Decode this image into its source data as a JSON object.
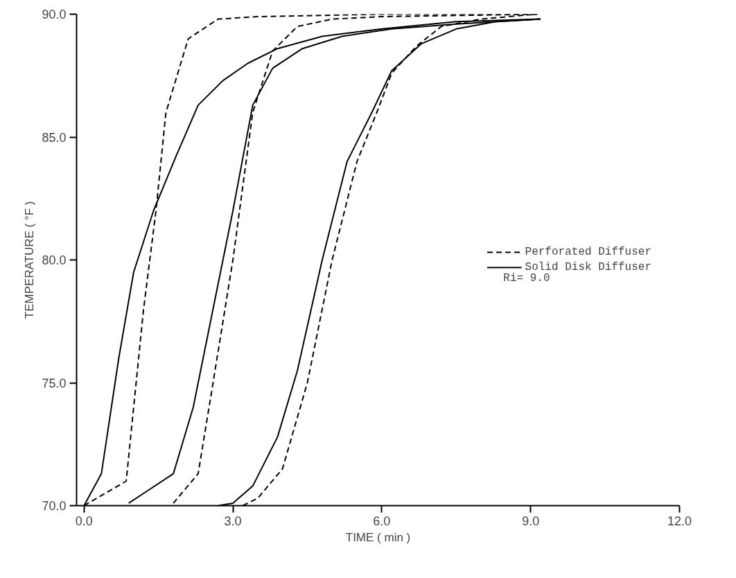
{
  "chart_data": {
    "type": "line",
    "xlabel": "TIME ( min )",
    "ylabel": "TEMPERATURE ( °F )",
    "xlim": [
      -0.15,
      12.0
    ],
    "ylim": [
      70.0,
      90.0
    ],
    "xticks": [
      {
        "value": 0,
        "label": "0.0"
      },
      {
        "value": 3,
        "label": "3.0"
      },
      {
        "value": 6,
        "label": "6.0"
      },
      {
        "value": 9,
        "label": "9.0"
      },
      {
        "value": 12,
        "label": "12.0"
      }
    ],
    "yticks": [
      {
        "value": 70,
        "label": "70.0"
      },
      {
        "value": 75,
        "label": "75.0"
      },
      {
        "value": 80,
        "label": "80.0"
      },
      {
        "value": 85,
        "label": "85.0"
      },
      {
        "value": 90,
        "label": "90.0"
      }
    ],
    "grid": false,
    "legend": "right",
    "marker": "none",
    "annotations": [
      "Ri= 9.0"
    ],
    "series": [
      {
        "name": "Perforated Diffuser",
        "color": "#000000",
        "line_style": "dashed",
        "x": [
          0,
          0.85,
          1.0,
          1.2,
          1.45,
          1.65,
          2.1,
          2.7,
          3.5,
          6.0,
          9.2
        ],
        "values": [
          70,
          71,
          74,
          78,
          82,
          86,
          89,
          89.8,
          89.9,
          90.0,
          90.0
        ]
      },
      {
        "name": "Solid Disk Diffuser",
        "color": "#000000",
        "line_style": "solid",
        "x": [
          0,
          0.35,
          0.7,
          1.0,
          1.4,
          1.85,
          2.3,
          2.8,
          3.3,
          3.9,
          4.8,
          6.0,
          7.5,
          9.2
        ],
        "values": [
          70,
          71.3,
          76,
          79.5,
          82,
          84.2,
          86.3,
          87.3,
          88,
          88.6,
          89.1,
          89.4,
          89.7,
          89.8
        ]
      },
      {
        "color": "#000000",
        "line_style": "dashed",
        "x": [
          1.8,
          2.3,
          2.6,
          3.0,
          3.4,
          3.8,
          4.3,
          5.0,
          6.0,
          9.15
        ],
        "values": [
          70.1,
          71.3,
          75,
          80,
          86,
          88.5,
          89.5,
          89.8,
          89.9,
          90.0
        ]
      },
      {
        "color": "#000000",
        "line_style": "solid",
        "x": [
          0.9,
          1.2,
          1.8,
          2.2,
          2.6,
          3.0,
          3.4,
          3.8,
          4.4,
          5.2,
          6.2,
          7.5,
          9.2
        ],
        "values": [
          70.1,
          70.5,
          71.3,
          74,
          78,
          82,
          86.3,
          87.8,
          88.6,
          89.1,
          89.4,
          89.6,
          89.8
        ]
      },
      {
        "color": "#000000",
        "line_style": "dashed",
        "x": [
          3.2,
          3.5,
          4.0,
          4.5,
          5.0,
          5.5,
          5.9,
          6.2,
          6.7,
          7.2,
          8.0,
          9.1
        ],
        "values": [
          70,
          70.3,
          71.5,
          75,
          80,
          84,
          86,
          87.6,
          88.7,
          89.5,
          89.8,
          90.0
        ]
      },
      {
        "color": "#000000",
        "line_style": "solid",
        "x": [
          2.7,
          3.0,
          3.4,
          3.9,
          4.3,
          4.8,
          5.3,
          5.8,
          6.2,
          6.8,
          7.5,
          8.3,
          9.2
        ],
        "values": [
          70,
          70.1,
          70.8,
          72.8,
          75.5,
          80,
          84,
          86,
          87.7,
          88.8,
          89.4,
          89.7,
          89.8
        ]
      }
    ]
  }
}
